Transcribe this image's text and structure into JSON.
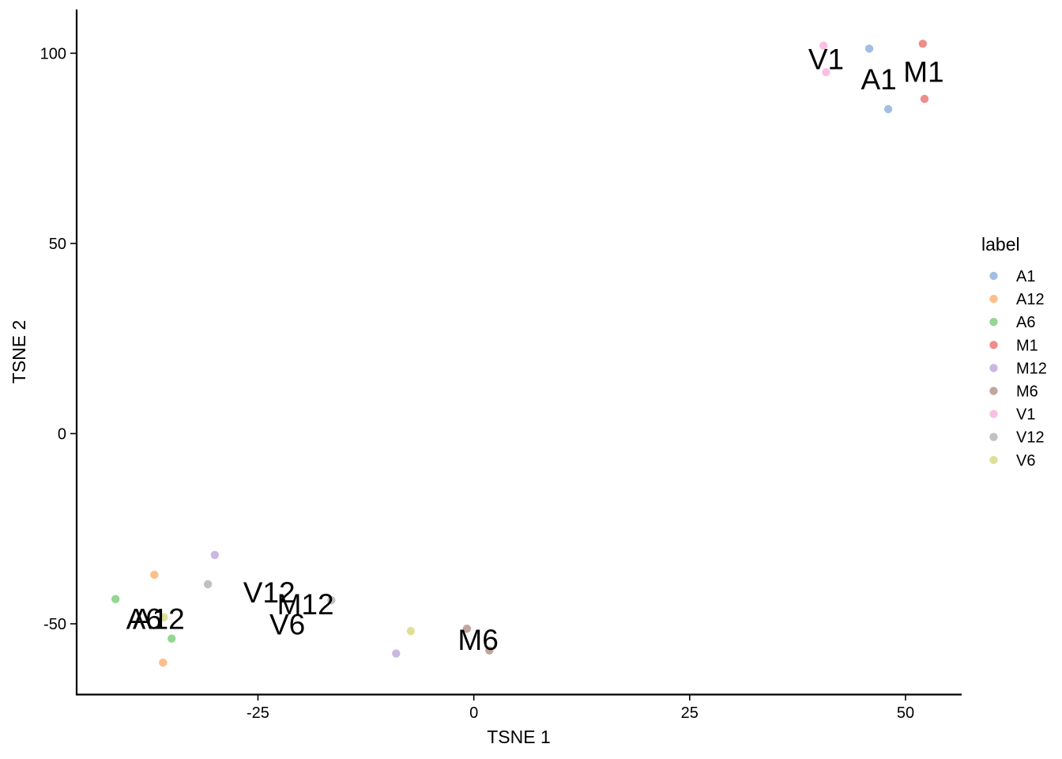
{
  "chart_data": {
    "type": "scatter",
    "title": "",
    "xlabel": "TSNE 1",
    "ylabel": "TSNE 2",
    "xlim": [
      -46,
      56.5
    ],
    "ylim": [
      -68.5,
      111.5
    ],
    "xticks": [
      -25,
      0,
      25,
      50
    ],
    "xtick_labels": [
      "-25",
      "0",
      "25",
      "50"
    ],
    "yticks": [
      -50,
      0,
      50,
      100
    ],
    "ytick_labels": [
      "-50",
      "0",
      "50",
      "100"
    ],
    "grid": false,
    "legend": {
      "title": "label",
      "position": "right",
      "entries": [
        "A1",
        "A12",
        "A6",
        "M1",
        "M12",
        "M6",
        "V1",
        "V12",
        "V6"
      ]
    },
    "series": [
      {
        "name": "A1",
        "color": "#7ea6d8",
        "points": [
          [
            45.8,
            101.2
          ],
          [
            48.0,
            85.3
          ]
        ]
      },
      {
        "name": "A12",
        "color": "#fda55b",
        "points": [
          [
            -37.0,
            -37.1
          ],
          [
            -36.0,
            -60.2
          ]
        ]
      },
      {
        "name": "A6",
        "color": "#6cc665",
        "points": [
          [
            -41.5,
            -43.5
          ],
          [
            -35.0,
            -53.9
          ]
        ]
      },
      {
        "name": "M1",
        "color": "#e8615c",
        "points": [
          [
            52.0,
            102.5
          ],
          [
            52.2,
            88.0
          ]
        ]
      },
      {
        "name": "M12",
        "color": "#b99ad9",
        "points": [
          [
            -30.0,
            -31.9
          ],
          [
            -9.0,
            -57.8
          ]
        ]
      },
      {
        "name": "M6",
        "color": "#a88478",
        "points": [
          [
            -0.8,
            -51.3
          ],
          [
            1.8,
            -57.0
          ]
        ]
      },
      {
        "name": "V1",
        "color": "#f7a6da",
        "points": [
          [
            40.5,
            102.0
          ],
          [
            40.8,
            95.0
          ]
        ]
      },
      {
        "name": "V12",
        "color": "#a9a9a9",
        "points": [
          [
            -30.8,
            -39.6
          ],
          [
            -16.5,
            -43.8
          ]
        ]
      },
      {
        "name": "V6",
        "color": "#d3d272",
        "points": [
          [
            -35.9,
            -48.3
          ],
          [
            -7.3,
            -51.9
          ]
        ]
      }
    ],
    "annotations": [
      {
        "text": "V1",
        "x": 40.8,
        "y": 98.5
      },
      {
        "text": "A1",
        "x": 46.9,
        "y": 93.2
      },
      {
        "text": "M1",
        "x": 52.1,
        "y": 95.2
      },
      {
        "text": "V12",
        "x": -23.7,
        "y": -41.7
      },
      {
        "text": "M12",
        "x": -19.5,
        "y": -44.8
      },
      {
        "text": "V6",
        "x": -21.6,
        "y": -50.1
      },
      {
        "text": "A6",
        "x": -38.2,
        "y": -48.7
      },
      {
        "text": "A12",
        "x": -36.5,
        "y": -48.7
      },
      {
        "text": "M6",
        "x": 0.5,
        "y": -54.2
      }
    ]
  }
}
